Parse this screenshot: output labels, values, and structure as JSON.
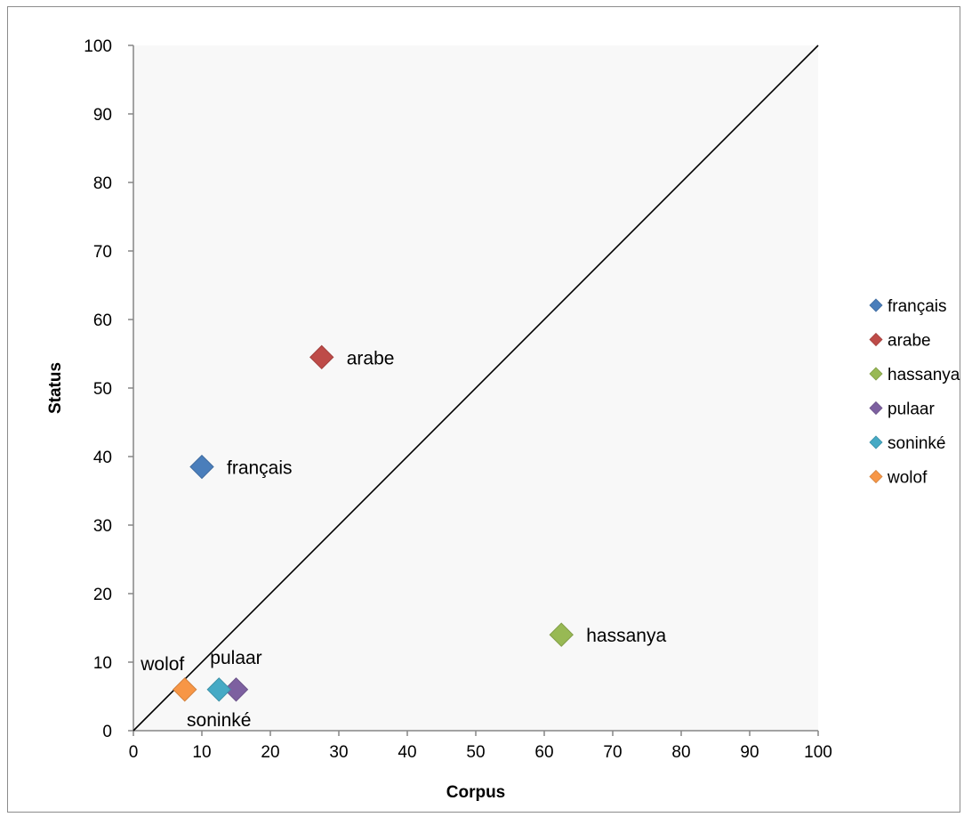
{
  "chart_data": {
    "type": "scatter",
    "title": "",
    "xlabel": "Corpus",
    "ylabel": "Status",
    "xlim": [
      0,
      100
    ],
    "ylim": [
      0,
      100
    ],
    "xticks": [
      "0",
      "10",
      "20",
      "30",
      "40",
      "50",
      "60",
      "70",
      "80",
      "90",
      "100"
    ],
    "yticks": [
      "0",
      "10",
      "20",
      "30",
      "40",
      "50",
      "60",
      "70",
      "80",
      "90",
      "100"
    ],
    "grid": false,
    "legend_position": "right",
    "marker": "diamond",
    "reference_line": {
      "from": [
        0,
        0
      ],
      "to": [
        100,
        100
      ],
      "color": "#000000"
    },
    "series": [
      {
        "name": "français",
        "color": "#4a7ebb",
        "x": 10,
        "y": 38.5,
        "label": "français"
      },
      {
        "name": "arabe",
        "color": "#be4b48",
        "x": 27.5,
        "y": 54.5,
        "label": "arabe"
      },
      {
        "name": "hassanya",
        "color": "#98b954",
        "x": 62.5,
        "y": 14,
        "label": "hassanya"
      },
      {
        "name": "pulaar",
        "color": "#7d60a0",
        "x": 15,
        "y": 6,
        "label": "pulaar"
      },
      {
        "name": "soninké",
        "color": "#46aac5",
        "x": 12.5,
        "y": 6,
        "label": "soninké"
      },
      {
        "name": "wolof",
        "color": "#f79646",
        "x": 7.5,
        "y": 6,
        "label": "wolof"
      }
    ]
  }
}
